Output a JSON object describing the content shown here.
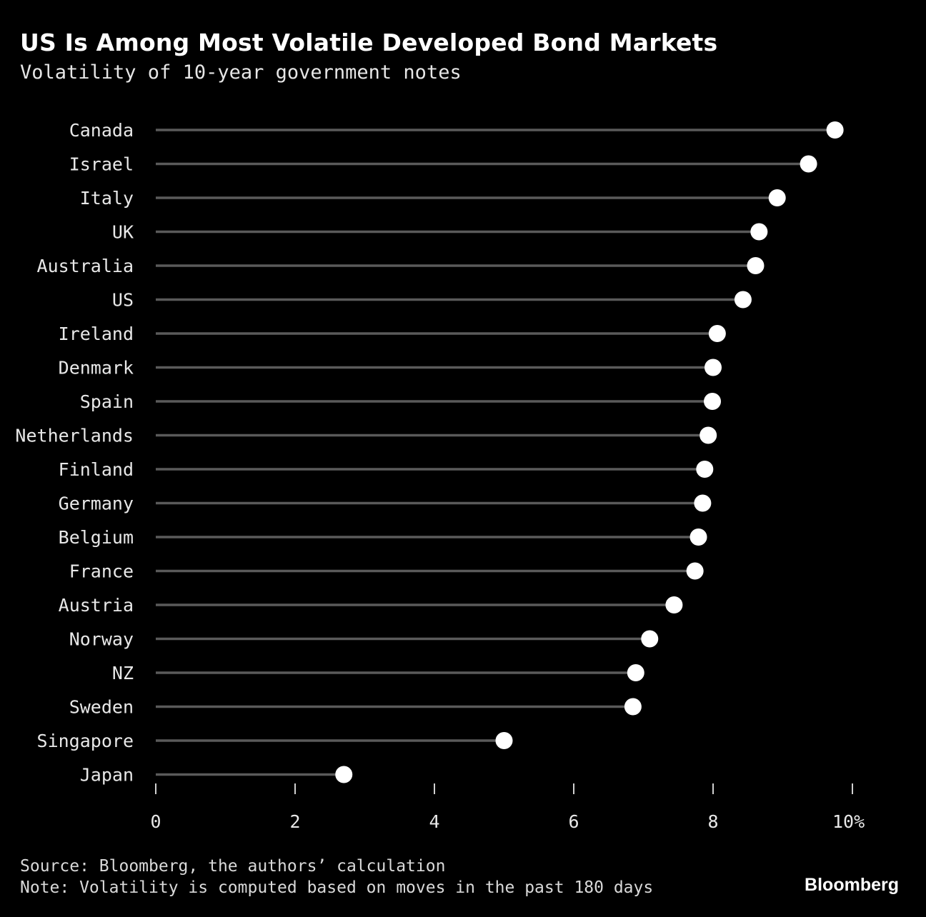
{
  "chart_data": {
    "type": "lollipop",
    "title": "US Is Among Most Volatile Developed Bond Markets",
    "subtitle": "Volatility of 10-year government notes",
    "categories": [
      "Canada",
      "Israel",
      "Italy",
      "UK",
      "Australia",
      "US",
      "Ireland",
      "Denmark",
      "Spain",
      "Netherlands",
      "Finland",
      "Germany",
      "Belgium",
      "France",
      "Austria",
      "Norway",
      "NZ",
      "Sweden",
      "Singapore",
      "Japan"
    ],
    "values": [
      9.75,
      9.37,
      8.92,
      8.66,
      8.61,
      8.43,
      8.06,
      8.0,
      7.99,
      7.93,
      7.88,
      7.85,
      7.79,
      7.74,
      7.44,
      7.09,
      6.89,
      6.85,
      5.0,
      2.7
    ],
    "xlim": [
      0,
      10
    ],
    "xticks": [
      "0",
      "2",
      "4",
      "6",
      "8",
      "10%"
    ],
    "xtick_values": [
      0,
      2,
      4,
      6,
      8,
      10
    ],
    "grid": false,
    "colors": {
      "background": "#000000",
      "stem": "#5a5a5a",
      "dot": "#ffffff",
      "text": "#e8e8e8"
    }
  },
  "footer": {
    "source": "Source: Bloomberg, the authors’ calculation",
    "note": "Note: Volatility is computed based on moves in the past 180 days",
    "brand": "Bloomberg"
  }
}
